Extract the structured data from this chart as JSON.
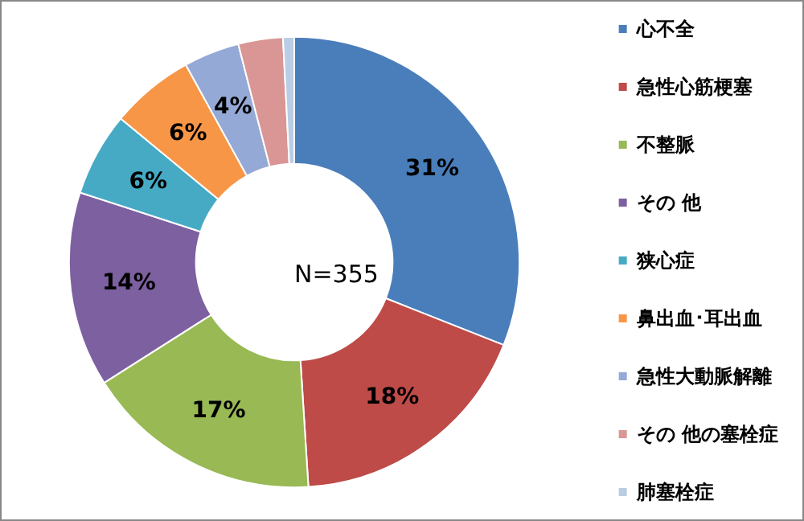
{
  "chart_data": {
    "type": "donut",
    "categories": [
      "心不全",
      "急性心筋梗塞",
      "不整脈",
      "その 他",
      "狭心症",
      "鼻出血･耳出血",
      "急性大動脈解離",
      "その 他の塞栓症",
      "肺塞栓症"
    ],
    "values": [
      31,
      18,
      17,
      14,
      6,
      6,
      4,
      3.2,
      0.8
    ],
    "value_labels": [
      "31%",
      "18%",
      "17%",
      "14%",
      "6%",
      "6%",
      "4%",
      null,
      null
    ],
    "colors": [
      "#4a7ebb",
      "#be4b48",
      "#98b954",
      "#7d60a0",
      "#46aac5",
      "#f79646",
      "#94a9d6",
      "#d99694",
      "#b9cde5"
    ],
    "annotations": [
      "N=355"
    ],
    "legend": "right"
  }
}
